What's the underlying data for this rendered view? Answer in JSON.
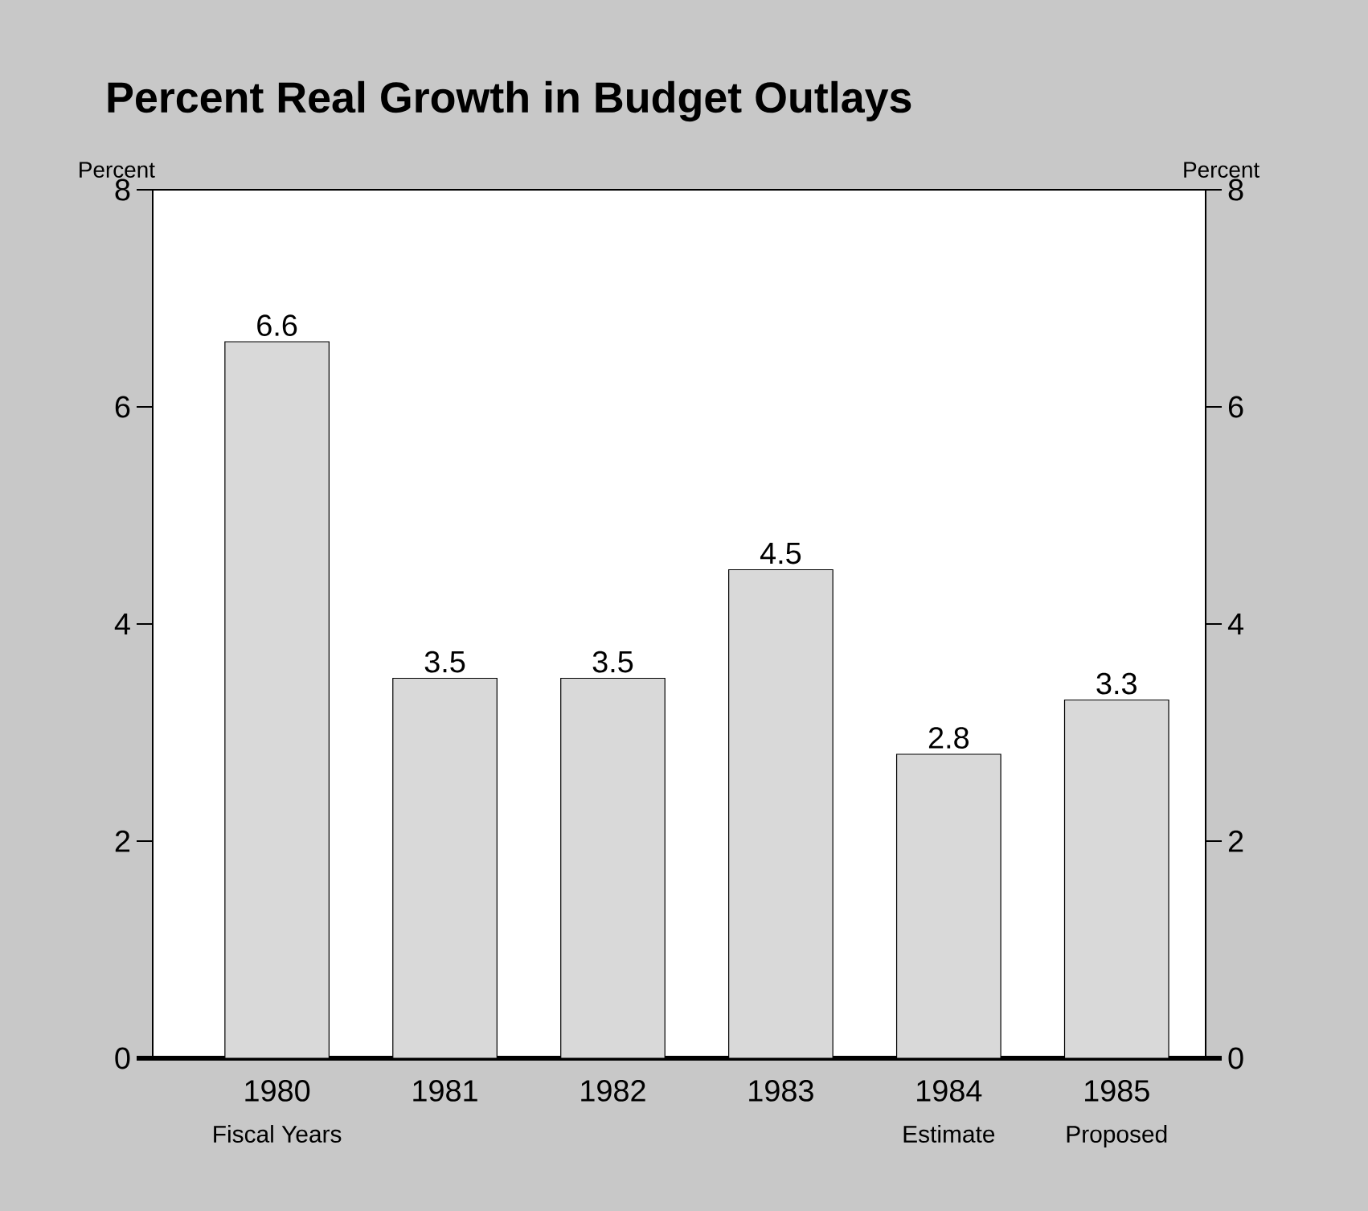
{
  "chart_data": {
    "type": "bar",
    "title": "Percent Real Growth in Budget Outlays",
    "ylabel": "Percent",
    "y2label": "Percent",
    "categories": [
      "1980",
      "1981",
      "1982",
      "1983",
      "1984",
      "1985"
    ],
    "values": [
      6.6,
      3.5,
      3.5,
      4.5,
      2.8,
      3.3
    ],
    "value_labels": [
      "6.6",
      "3.5",
      "3.5",
      "4.5",
      "2.8",
      "3.3"
    ],
    "color": "#d9d9d9",
    "ylim": [
      0,
      8
    ],
    "yticks": [
      0,
      2,
      4,
      6,
      8
    ],
    "y2lim": [
      0,
      8
    ],
    "y2ticks": [
      0,
      2,
      4,
      6,
      8
    ],
    "annotations": [
      "Fiscal Years",
      "Estimate",
      "Proposed"
    ],
    "grid": false
  }
}
